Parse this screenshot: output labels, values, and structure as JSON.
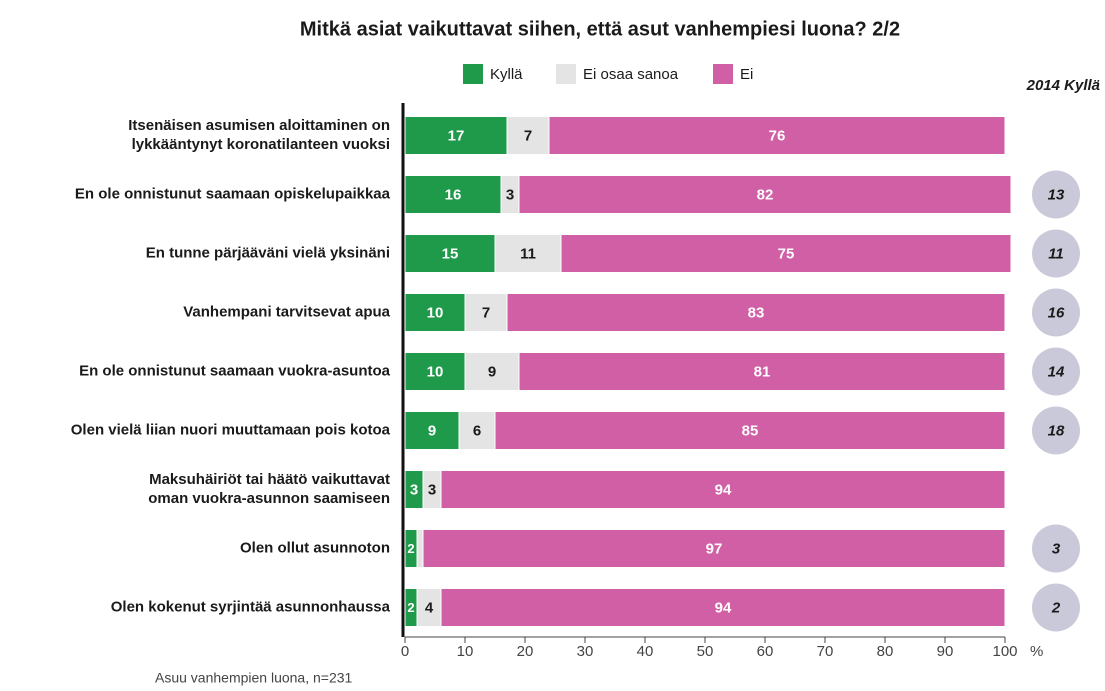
{
  "chart_data": {
    "type": "stacked-bar-horizontal",
    "title": "Mitkä asiat vaikuttavat siihen, että asut vanhempiesi luona? 2/2",
    "categories": [
      [
        "Itsenäisen asumisen aloittaminen on",
        "lykkääntynyt koronatilanteen vuoksi"
      ],
      [
        "En ole onnistunut saamaan opiskelupaikkaa"
      ],
      [
        "En tunne pärjääväni vielä yksinäni"
      ],
      [
        "Vanhempani tarvitsevat apua"
      ],
      [
        "En ole onnistunut saamaan vuokra-asuntoa"
      ],
      [
        "Olen vielä liian nuori muuttamaan pois kotoa"
      ],
      [
        "Maksuhäiriöt tai häätö vaikuttavat",
        "oman vuokra-asunnon saamiseen"
      ],
      [
        "Olen ollut asunnoton"
      ],
      [
        "Olen kokenut syrjintää asunnonhaussa"
      ]
    ],
    "series": [
      {
        "name": "Kyllä",
        "color": "#1e9a4a",
        "label_color": "#ffffff",
        "values": [
          17,
          16,
          15,
          10,
          10,
          9,
          3,
          2,
          2
        ]
      },
      {
        "name": "Ei osaa sanoa",
        "color": "#e4e4e4",
        "label_color": "#1a1a1a",
        "values": [
          7,
          3,
          11,
          7,
          9,
          6,
          3,
          1,
          4
        ],
        "value_labels": [
          "7",
          "3",
          "11",
          "7",
          "9",
          "6",
          "3",
          null,
          "4"
        ]
      },
      {
        "name": "Ei",
        "color": "#d15fa5",
        "label_color": "#ffffff",
        "values": [
          76,
          82,
          75,
          83,
          81,
          85,
          94,
          97,
          94
        ]
      }
    ],
    "comparison": {
      "name": "2014 Kyllä",
      "color": "#c9c9d9",
      "values": [
        null,
        13,
        11,
        16,
        14,
        18,
        null,
        3,
        2
      ]
    },
    "xlim": [
      0,
      100
    ],
    "xticks": [
      0,
      10,
      20,
      30,
      40,
      50,
      60,
      70,
      80,
      90,
      100
    ],
    "xlabel": "%",
    "note": "Asuu vanhempien luona, n=231"
  }
}
